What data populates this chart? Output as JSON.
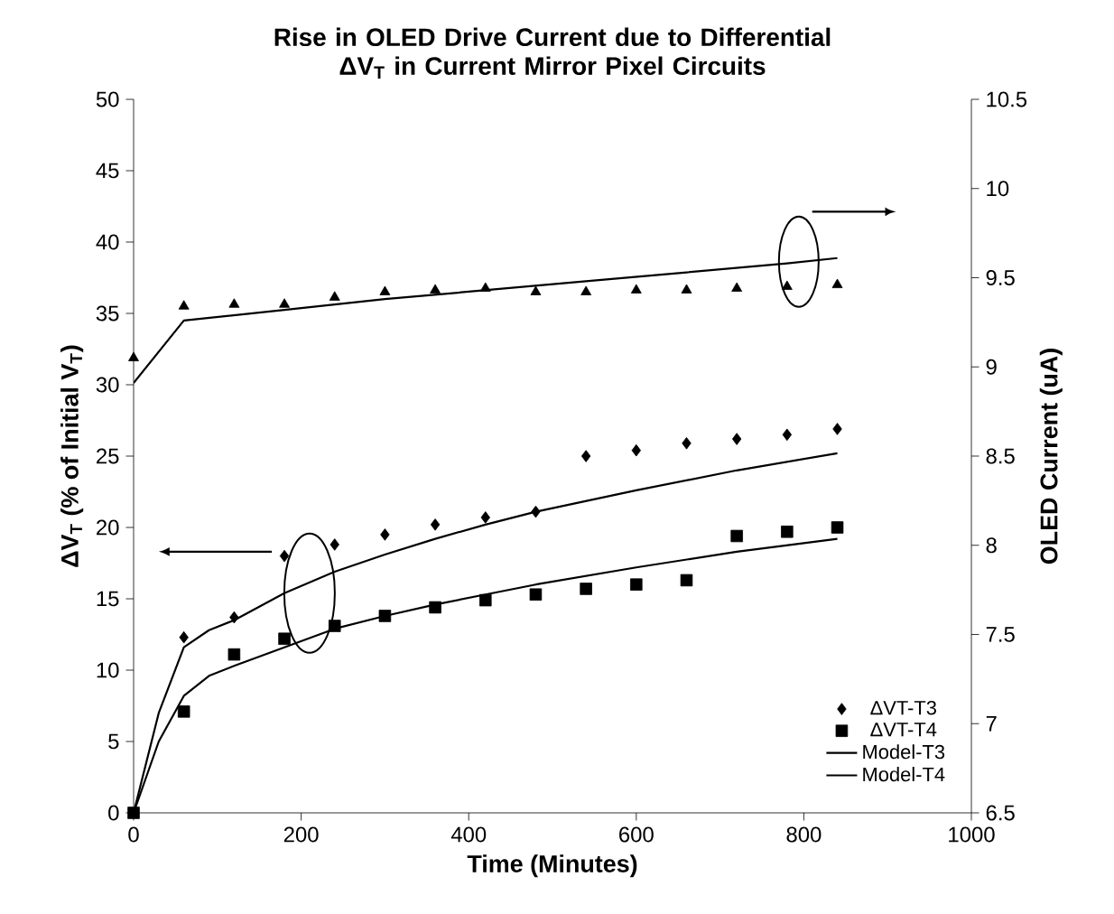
{
  "chart_data": {
    "type": "scatter",
    "title": "Rise in OLED Drive Current due to Differential ΔV$_{T}$ in Current Mirror Pixel Circuits",
    "xlabel": "Time (Minutes)",
    "ylabel": "ΔV$_{T}$ (% of Initial V$_{T}$)",
    "y2label": "OLED Current (uA)",
    "xlim": [
      0,
      1000
    ],
    "xticks": [
      0,
      200,
      400,
      600,
      800,
      1000
    ],
    "ylim": [
      0,
      50
    ],
    "yticks": [
      0,
      5,
      10,
      15,
      20,
      25,
      30,
      35,
      40,
      45,
      50
    ],
    "y2lim": [
      6.5,
      10.5
    ],
    "y2ticks": [
      6.5,
      7,
      7.5,
      8,
      8.5,
      9,
      9.5,
      10,
      10.5
    ],
    "legend": "bottom right",
    "grid": false,
    "series": [
      {
        "name": "ΔVT-T3",
        "marker": "diamond",
        "color": "#000000",
        "x": [
          60,
          120,
          180,
          240,
          300,
          360,
          420,
          480,
          540,
          600,
          660,
          720,
          780,
          840
        ],
        "values": [
          12.3,
          13.7,
          18,
          18.8,
          19.5,
          20.2,
          20.7,
          21.1,
          25,
          25.4,
          25.9,
          26.2,
          26.5,
          26.9
        ]
      },
      {
        "name": "ΔVT-T4",
        "marker": "square",
        "color": "#000000",
        "x": [
          0,
          60,
          120,
          180,
          240,
          300,
          360,
          420,
          480,
          540,
          600,
          660,
          720,
          780,
          840
        ],
        "values": [
          0,
          7.1,
          11.1,
          12.2,
          13.1,
          13.8,
          14.4,
          14.9,
          15.3,
          15.7,
          16.0,
          16.3,
          19.4,
          19.7,
          20.0
        ]
      },
      {
        "name": "Model-T3",
        "type": "line",
        "marker": "none",
        "line_style": "solid",
        "color": "#000000",
        "x": [
          0,
          30,
          60,
          90,
          120,
          180,
          240,
          300,
          360,
          420,
          480,
          600,
          720,
          840
        ],
        "values": [
          0,
          7,
          11.6,
          12.8,
          13.5,
          15.4,
          16.9,
          18.1,
          19.2,
          20.2,
          21.1,
          22.6,
          24.0,
          25.2
        ]
      },
      {
        "name": "Model-T4",
        "type": "line",
        "marker": "none",
        "line_style": "solid",
        "color": "#000000",
        "x": [
          0,
          30,
          60,
          90,
          120,
          180,
          240,
          300,
          360,
          420,
          480,
          600,
          720,
          840
        ],
        "values": [
          0,
          5,
          8.2,
          9.6,
          10.3,
          11.6,
          12.9,
          13.8,
          14.6,
          15.3,
          16.0,
          17.2,
          18.3,
          19.2
        ]
      },
      {
        "marker": "triangle",
        "color": "#000000",
        "axis": "y2",
        "x": [
          0,
          60,
          120,
          180,
          240,
          300,
          360,
          420,
          480,
          540,
          600,
          660,
          720,
          780,
          840
        ],
        "values": [
          9.05,
          9.34,
          9.35,
          9.35,
          9.39,
          9.42,
          9.43,
          9.44,
          9.42,
          9.42,
          9.43,
          9.43,
          9.44,
          9.45,
          9.46
        ]
      },
      {
        "type": "line",
        "marker": "none",
        "line_style": "solid",
        "color": "#000000",
        "axis": "y2",
        "x": [
          0,
          60,
          180,
          300,
          420,
          540,
          660,
          780,
          840
        ],
        "values": [
          8.91,
          9.26,
          9.32,
          9.38,
          9.43,
          9.48,
          9.53,
          9.58,
          9.61
        ]
      }
    ]
  }
}
